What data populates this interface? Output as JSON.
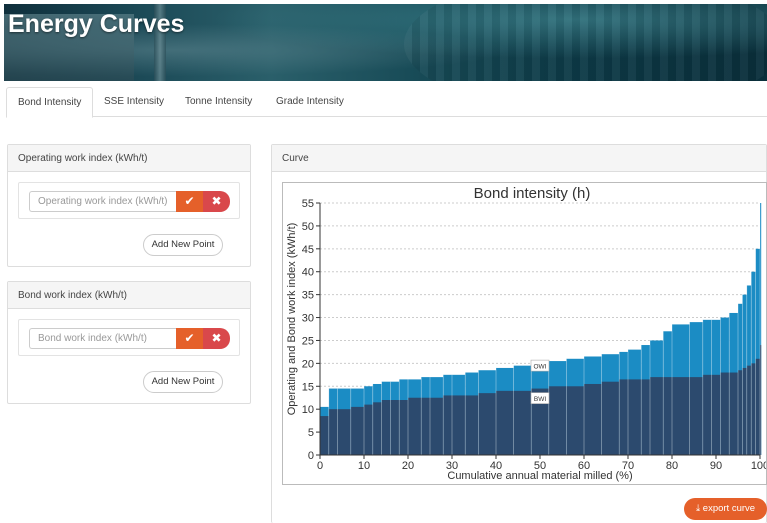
{
  "banner": {
    "title": "Energy Curves"
  },
  "tabs": [
    {
      "label": "Bond Intensity",
      "active": true
    },
    {
      "label": "SSE Intensity"
    },
    {
      "label": "Tonne Intensity"
    },
    {
      "label": "Grade Intensity"
    }
  ],
  "owi_panel": {
    "title": "Operating work index (kWh/t)",
    "placeholder": "Operating work index (kWh/t)",
    "add_label": "Add New Point",
    "ok_icon": "checkmark-icon",
    "cancel_icon": "close-icon"
  },
  "bwi_panel": {
    "title": "Bond work index (kWh/t)",
    "placeholder": "Bond work index (kWh/t)",
    "add_label": "Add New Point",
    "ok_icon": "checkmark-icon",
    "cancel_icon": "close-icon"
  },
  "curve_panel": {
    "title": "Curve"
  },
  "export_label": "export curve",
  "colors": {
    "accent": "#e5602a",
    "danger": "#d9484b",
    "owi": "#1b8cc4",
    "bwi": "#2c4a6e"
  },
  "chart_data": {
    "type": "bar",
    "title": "Bond intensity (h)",
    "xlabel": "Cumulative annual material milled (%)",
    "ylabel": "Operating and Bond work index (kWh/t)",
    "xlim": [
      0,
      100
    ],
    "ylim": [
      0,
      55
    ],
    "xticks": [
      "0",
      "10",
      "20",
      "30",
      "40",
      "50",
      "60",
      "70",
      "80",
      "90",
      "100"
    ],
    "yticks": [
      "0",
      "5",
      "10",
      "15",
      "20",
      "25",
      "30",
      "35",
      "40",
      "45",
      "50",
      "55"
    ],
    "grid": true,
    "annotations": [
      "OWI",
      "BWI"
    ],
    "series": [
      {
        "name": "OWI",
        "x": [
          0,
          2,
          4,
          7,
          10,
          12,
          14,
          16,
          18,
          20,
          23,
          25,
          28,
          30,
          33,
          36,
          40,
          44,
          48,
          52,
          56,
          60,
          64,
          68,
          70,
          73,
          75,
          78,
          80,
          84,
          87,
          89,
          91,
          93,
          95,
          96,
          97,
          98,
          99,
          100
        ],
        "values": [
          10.5,
          14.5,
          14.5,
          14.5,
          15.0,
          15.5,
          16.0,
          16.0,
          16.5,
          16.5,
          17.0,
          17.0,
          17.5,
          17.5,
          18.0,
          18.5,
          19.0,
          19.5,
          20.0,
          20.5,
          21.0,
          21.5,
          22.0,
          22.5,
          23.0,
          24.0,
          25.0,
          27.0,
          28.5,
          29.0,
          29.5,
          29.5,
          30.0,
          31.0,
          33.0,
          35.0,
          37.0,
          40.0,
          45.0,
          55.0
        ]
      },
      {
        "name": "BWI",
        "x": [
          0,
          2,
          4,
          7,
          10,
          12,
          14,
          16,
          18,
          20,
          23,
          25,
          28,
          30,
          33,
          36,
          40,
          44,
          48,
          52,
          56,
          60,
          64,
          68,
          70,
          73,
          75,
          78,
          80,
          84,
          87,
          89,
          91,
          93,
          95,
          96,
          97,
          98,
          99,
          100
        ],
        "values": [
          8.5,
          10.0,
          10.0,
          10.5,
          11.0,
          11.5,
          12.0,
          12.0,
          12.0,
          12.5,
          12.5,
          12.5,
          13.0,
          13.0,
          13.0,
          13.5,
          14.0,
          14.0,
          14.5,
          15.0,
          15.0,
          15.5,
          16.0,
          16.5,
          16.5,
          16.5,
          17.0,
          17.0,
          17.0,
          17.0,
          17.5,
          17.5,
          18.0,
          18.0,
          18.5,
          19.0,
          19.5,
          20.0,
          21.0,
          24.0
        ]
      }
    ]
  }
}
